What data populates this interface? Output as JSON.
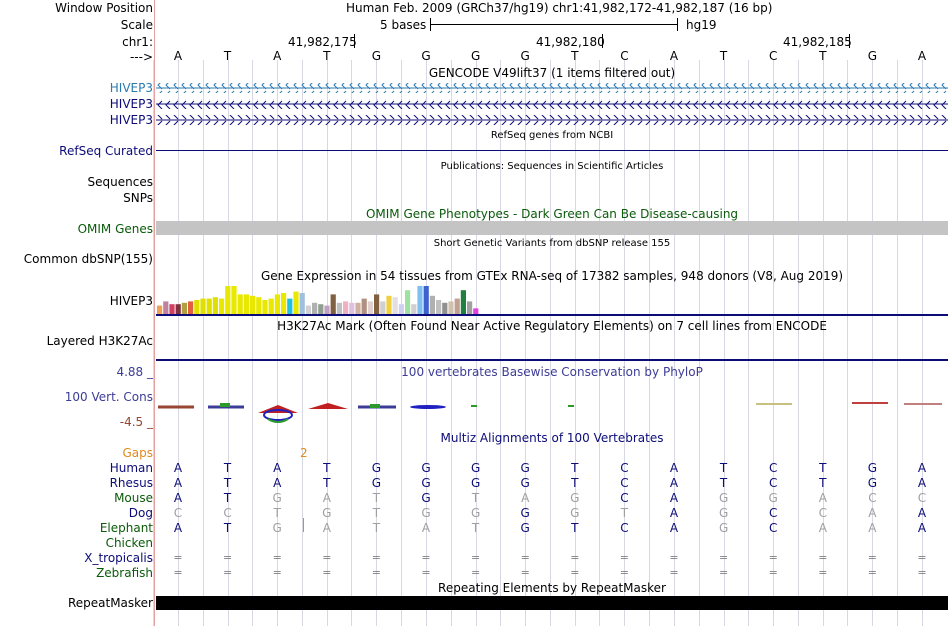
{
  "header": {
    "window_position_label": "Window Position",
    "window_position_value": "Human Feb. 2009 (GRCh37/hg19)   chr1:41,982,172-41,982,187 (16 bp)",
    "scale_label": "Scale",
    "scale_text": "5 bases",
    "scale_assembly": "hg19",
    "chrom_label": "chr1:",
    "strand_label": "--->",
    "pos_ticks": [
      "41,982,175",
      "41,982,180",
      "41,982,185"
    ],
    "bases": [
      "A",
      "T",
      "A",
      "T",
      "G",
      "G",
      "G",
      "G",
      "T",
      "C",
      "A",
      "T",
      "C",
      "T",
      "G",
      "A"
    ]
  },
  "gencode": {
    "title": "GENCODE V49lift37 (1 items filtered out)",
    "rows": [
      "HIVEP3",
      "HIVEP3",
      "HIVEP3"
    ],
    "color_first": "#2a7ab0"
  },
  "refseq": {
    "title": "RefSeq genes from NCBI",
    "label": "RefSeq Curated",
    "color": "#0c0c78"
  },
  "publications": {
    "title": "Publications: Sequences in Scientific Articles",
    "labels": [
      "Sequences",
      "SNPs"
    ]
  },
  "omim": {
    "title": "OMIM Gene Phenotypes - Dark Green Can Be Disease-causing",
    "label": "OMIM Genes",
    "color": "#0a5a0a"
  },
  "dbsnp": {
    "title": "Short Genetic Variants from dbSNP release 155",
    "label": "Common dbSNP(155)"
  },
  "gtex": {
    "title": "Gene Expression in 54 tissues from GTEx RNA-seq of 17382 samples, 948 donors (V8, Aug 2019)",
    "label": "HIVEP3",
    "bars": [
      {
        "v": 0.3,
        "c": "#f0a050"
      },
      {
        "v": 0.45,
        "c": "#c080a0"
      },
      {
        "v": 0.35,
        "c": "#d04060"
      },
      {
        "v": 0.35,
        "c": "#803040"
      },
      {
        "v": 0.4,
        "c": "#b0a040"
      },
      {
        "v": 0.45,
        "c": "#e06040"
      },
      {
        "v": 0.5,
        "c": "#e0e000"
      },
      {
        "v": 0.55,
        "c": "#e0e000"
      },
      {
        "v": 0.55,
        "c": "#e0e000"
      },
      {
        "v": 0.6,
        "c": "#e0e000"
      },
      {
        "v": 0.55,
        "c": "#e8e800"
      },
      {
        "v": 1.0,
        "c": "#e8e800"
      },
      {
        "v": 1.0,
        "c": "#e8e800"
      },
      {
        "v": 0.7,
        "c": "#e8e800"
      },
      {
        "v": 0.7,
        "c": "#e8e800"
      },
      {
        "v": 0.65,
        "c": "#e8e800"
      },
      {
        "v": 0.6,
        "c": "#e8e800"
      },
      {
        "v": 0.5,
        "c": "#e8e800"
      },
      {
        "v": 0.55,
        "c": "#e8e800"
      },
      {
        "v": 0.7,
        "c": "#e8e800"
      },
      {
        "v": 0.75,
        "c": "#e8e800"
      },
      {
        "v": 0.55,
        "c": "#20c0e0"
      },
      {
        "v": 0.8,
        "c": "#e8e800"
      },
      {
        "v": 0.75,
        "c": "#a0c0e0"
      },
      {
        "v": 0.3,
        "c": "#d0d0d0"
      },
      {
        "v": 0.4,
        "c": "#b0b0b0"
      },
      {
        "v": 0.35,
        "c": "#90a090"
      },
      {
        "v": 0.3,
        "c": "#c0a0c0"
      },
      {
        "v": 0.7,
        "c": "#806040"
      },
      {
        "v": 0.4,
        "c": "#c0c0c0"
      },
      {
        "v": 0.45,
        "c": "#f0b0c0"
      },
      {
        "v": 0.4,
        "c": "#e0c0e0"
      },
      {
        "v": 0.4,
        "c": "#d0b0a0"
      },
      {
        "v": 0.55,
        "c": "#b09080"
      },
      {
        "v": 0.45,
        "c": "#e0d0d0"
      },
      {
        "v": 0.7,
        "c": "#806040"
      },
      {
        "v": 0.45,
        "c": "#d0d0d0"
      },
      {
        "v": 0.65,
        "c": "#f0d040"
      },
      {
        "v": 0.6,
        "c": "#e0e0e0"
      },
      {
        "v": 0.35,
        "c": "#d0d0f0"
      },
      {
        "v": 0.85,
        "c": "#a0e0a0"
      },
      {
        "v": 0.35,
        "c": "#d0d0d0"
      },
      {
        "v": 1.0,
        "c": "#80c0f0"
      },
      {
        "v": 1.0,
        "c": "#4060d0"
      },
      {
        "v": 0.65,
        "c": "#b0b0b0"
      },
      {
        "v": 0.5,
        "c": "#c0c0c0"
      },
      {
        "v": 0.4,
        "c": "#909090"
      },
      {
        "v": 0.45,
        "c": "#d0c0b0"
      },
      {
        "v": 0.55,
        "c": "#c0a090"
      },
      {
        "v": 0.85,
        "c": "#208040"
      },
      {
        "v": 0.45,
        "c": "#a0a0a0"
      },
      {
        "v": 0.2,
        "c": "#e040e0"
      }
    ]
  },
  "h3k27ac": {
    "title": "H3K27Ac Mark (Often Found Near Active Regulatory Elements) on 7 cell lines from ENCODE",
    "label": "Layered H3K27Ac"
  },
  "phylop": {
    "title": "100 vertebrates Basewise Conservation by PhyloP",
    "label": "100 Vert. Cons",
    "ymax": "4.88 _",
    "ymin": "-4.5 _",
    "color": "#3c3c96",
    "neg_color": "#964632"
  },
  "multiz": {
    "title": "Multiz Alignments of 100 Vertebrates",
    "gaps_label": "Gaps",
    "gaps_marker": "2",
    "gaps_color": "#e08a20",
    "species": [
      {
        "name": "Human",
        "color": "#0c0c78",
        "seq": [
          "A",
          "T",
          "A",
          "T",
          "G",
          "G",
          "G",
          "G",
          "T",
          "C",
          "A",
          "T",
          "C",
          "T",
          "G",
          "A"
        ],
        "grey": []
      },
      {
        "name": "Rhesus",
        "color": "#0c0c78",
        "seq": [
          "A",
          "T",
          "A",
          "T",
          "G",
          "G",
          "G",
          "G",
          "T",
          "C",
          "A",
          "T",
          "C",
          "T",
          "G",
          "A"
        ],
        "grey": []
      },
      {
        "name": "Mouse",
        "color": "#0a5a0a",
        "seq": [
          "A",
          "T",
          "G",
          "A",
          "T",
          "G",
          "T",
          "A",
          "G",
          "C",
          "A",
          "G",
          "G",
          "A",
          "C",
          "C"
        ],
        "grey": [
          2,
          3,
          4,
          6,
          7,
          8,
          11,
          12,
          13,
          14,
          15
        ]
      },
      {
        "name": "Dog",
        "color": "#0c0c78",
        "seq": [
          "C",
          "C",
          "T",
          "G",
          "T",
          "G",
          "G",
          "G",
          "G",
          "T",
          "A",
          "G",
          "C",
          "C",
          "A",
          "A"
        ],
        "grey": [
          0,
          1,
          2,
          3,
          4,
          5,
          6,
          8,
          9,
          11,
          13,
          14
        ]
      },
      {
        "name": "Elephant",
        "color": "#0a5a0a",
        "seq": [
          "A",
          "T",
          "G",
          "A",
          "T",
          "A",
          "T",
          "G",
          "T",
          "C",
          "A",
          "G",
          "C",
          "A",
          "A",
          "A"
        ],
        "grey": [
          2,
          3,
          4,
          5,
          6,
          11,
          13,
          14
        ]
      },
      {
        "name": "Chicken",
        "color": "#0a5a0a",
        "seq": [
          "",
          "",
          "",
          "",
          "",
          "",
          "",
          "",
          "",
          "",
          "",
          "",
          "",
          "",
          "",
          ""
        ],
        "grey": []
      },
      {
        "name": "X_tropicalis",
        "color": "#0c0c78",
        "seq": [
          "=",
          "=",
          "=",
          "=",
          "=",
          "=",
          "=",
          "=",
          "=",
          "=",
          "=",
          "=",
          "=",
          "=",
          "=",
          "="
        ],
        "grey": []
      },
      {
        "name": "Zebrafish",
        "color": "#0a5a0a",
        "seq": [
          "=",
          "=",
          "=",
          "=",
          "=",
          "=",
          "=",
          "=",
          "=",
          "=",
          "=",
          "=",
          "=",
          "=",
          "=",
          "="
        ],
        "grey": []
      }
    ]
  },
  "repeatmasker": {
    "title": "Repeating Elements by RepeatMasker",
    "label": "RepeatMasker"
  }
}
